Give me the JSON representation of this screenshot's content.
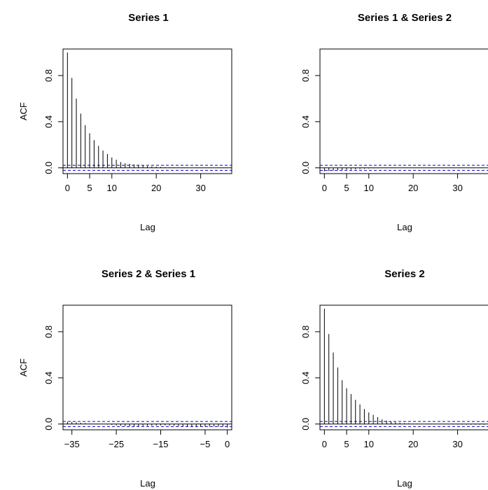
{
  "chart_data": [
    {
      "type": "bar",
      "title": "Series 1",
      "xlabel": "Lag",
      "ylabel": "ACF",
      "xlim": [
        -1,
        37
      ],
      "ylim": [
        -0.05,
        1.03
      ],
      "x_ticks": [
        0,
        5,
        10,
        20,
        30
      ],
      "y_ticks": [
        0.0,
        0.4,
        0.8
      ],
      "y_tick_labels": [
        "0.0",
        "0.4",
        "0.8"
      ],
      "conf_limit": 0.022,
      "x": [
        0,
        1,
        2,
        3,
        4,
        5,
        6,
        7,
        8,
        9,
        10,
        11,
        12,
        13,
        14,
        15,
        16,
        17,
        18,
        19,
        20,
        21,
        22,
        23,
        24,
        25,
        26,
        27,
        28,
        29,
        30,
        31,
        32,
        33,
        34,
        35,
        36
      ],
      "values": [
        1.0,
        0.78,
        0.6,
        0.47,
        0.37,
        0.3,
        0.24,
        0.19,
        0.15,
        0.12,
        0.09,
        0.07,
        0.05,
        0.04,
        0.035,
        0.03,
        0.025,
        0.02,
        0.015,
        0.012,
        0.01,
        0.008,
        0.006,
        0.005,
        0.004,
        0.003,
        0.003,
        0.002,
        0.002,
        0.002,
        0.002,
        0.001,
        0.001,
        0.001,
        0.001,
        0.001,
        0.001
      ]
    },
    {
      "type": "bar",
      "title": "Series 1 & Series 2",
      "xlabel": "Lag",
      "ylabel": "",
      "xlim": [
        -1,
        37
      ],
      "ylim": [
        -0.05,
        1.03
      ],
      "x_ticks": [
        0,
        5,
        10,
        20,
        30
      ],
      "y_ticks": [
        0.0,
        0.4,
        0.8
      ],
      "y_tick_labels": [
        "0.0",
        "0.4",
        "0.8"
      ],
      "conf_limit": 0.022,
      "x": [
        0,
        1,
        2,
        3,
        4,
        5,
        6,
        7,
        8,
        9,
        10,
        11,
        12,
        13,
        14,
        15,
        16,
        17,
        18,
        19,
        20,
        21,
        22,
        23,
        24,
        25,
        26,
        27,
        28,
        29,
        30,
        31,
        32,
        33,
        34,
        35,
        36
      ],
      "values": [
        -0.03,
        -0.028,
        -0.025,
        -0.022,
        -0.02,
        -0.017,
        -0.015,
        -0.013,
        -0.01,
        -0.008,
        -0.006,
        -0.005,
        -0.004,
        -0.003,
        -0.003,
        -0.002,
        -0.002,
        -0.001,
        -0.001,
        0.0,
        0.0,
        0.001,
        0.001,
        -0.001,
        0.0,
        0.001,
        -0.001,
        0.0,
        0.001,
        -0.001,
        0.0,
        -0.001,
        0.001,
        0.0,
        -0.001,
        0.0,
        0.0
      ]
    },
    {
      "type": "bar",
      "title": "Series 2 & Series 1",
      "xlabel": "Lag",
      "ylabel": "ACF",
      "xlim": [
        -37,
        1
      ],
      "ylim": [
        -0.05,
        1.03
      ],
      "x_ticks": [
        -35,
        -25,
        -15,
        -5,
        0
      ],
      "x_tick_labels": [
        "−35",
        "−25",
        "−15",
        "−5",
        "0"
      ],
      "y_ticks": [
        0.0,
        0.4,
        0.8
      ],
      "y_tick_labels": [
        "0.0",
        "0.4",
        "0.8"
      ],
      "conf_limit": 0.022,
      "x": [
        -36,
        -35,
        -34,
        -33,
        -32,
        -31,
        -30,
        -29,
        -28,
        -27,
        -26,
        -25,
        -24,
        -23,
        -22,
        -21,
        -20,
        -19,
        -18,
        -17,
        -16,
        -15,
        -14,
        -13,
        -12,
        -11,
        -10,
        -9,
        -8,
        -7,
        -6,
        -5,
        -4,
        -3,
        -2,
        -1,
        0
      ],
      "values": [
        0.02,
        0.018,
        0.015,
        0.01,
        0.008,
        0.005,
        0.003,
        0.001,
        -0.002,
        -0.005,
        -0.008,
        -0.012,
        -0.015,
        -0.018,
        -0.02,
        -0.02,
        -0.018,
        -0.016,
        -0.015,
        -0.014,
        -0.013,
        -0.012,
        -0.012,
        -0.013,
        -0.015,
        -0.018,
        -0.02,
        -0.022,
        -0.025,
        -0.025,
        -0.024,
        -0.023,
        -0.022,
        -0.022,
        -0.022,
        -0.022,
        -0.03
      ]
    },
    {
      "type": "bar",
      "title": "Series 2",
      "xlabel": "Lag",
      "ylabel": "",
      "xlim": [
        -1,
        37
      ],
      "ylim": [
        -0.05,
        1.03
      ],
      "x_ticks": [
        0,
        5,
        10,
        20,
        30
      ],
      "y_ticks": [
        0.0,
        0.4,
        0.8
      ],
      "y_tick_labels": [
        "0.0",
        "0.4",
        "0.8"
      ],
      "conf_limit": 0.022,
      "x": [
        0,
        1,
        2,
        3,
        4,
        5,
        6,
        7,
        8,
        9,
        10,
        11,
        12,
        13,
        14,
        15,
        16,
        17,
        18,
        19,
        20,
        21,
        22,
        23,
        24,
        25,
        26,
        27,
        28,
        29,
        30,
        31,
        32,
        33,
        34,
        35,
        36
      ],
      "values": [
        1.0,
        0.78,
        0.62,
        0.49,
        0.38,
        0.31,
        0.26,
        0.21,
        0.17,
        0.13,
        0.1,
        0.08,
        0.06,
        0.04,
        0.03,
        0.02,
        0.015,
        0.01,
        0.008,
        0.006,
        0.004,
        0.003,
        0.002,
        0.001,
        0.0,
        -0.001,
        -0.002,
        -0.003,
        -0.004,
        -0.004,
        -0.005,
        -0.005,
        -0.006,
        -0.006,
        -0.006,
        -0.006,
        -0.006
      ]
    }
  ]
}
